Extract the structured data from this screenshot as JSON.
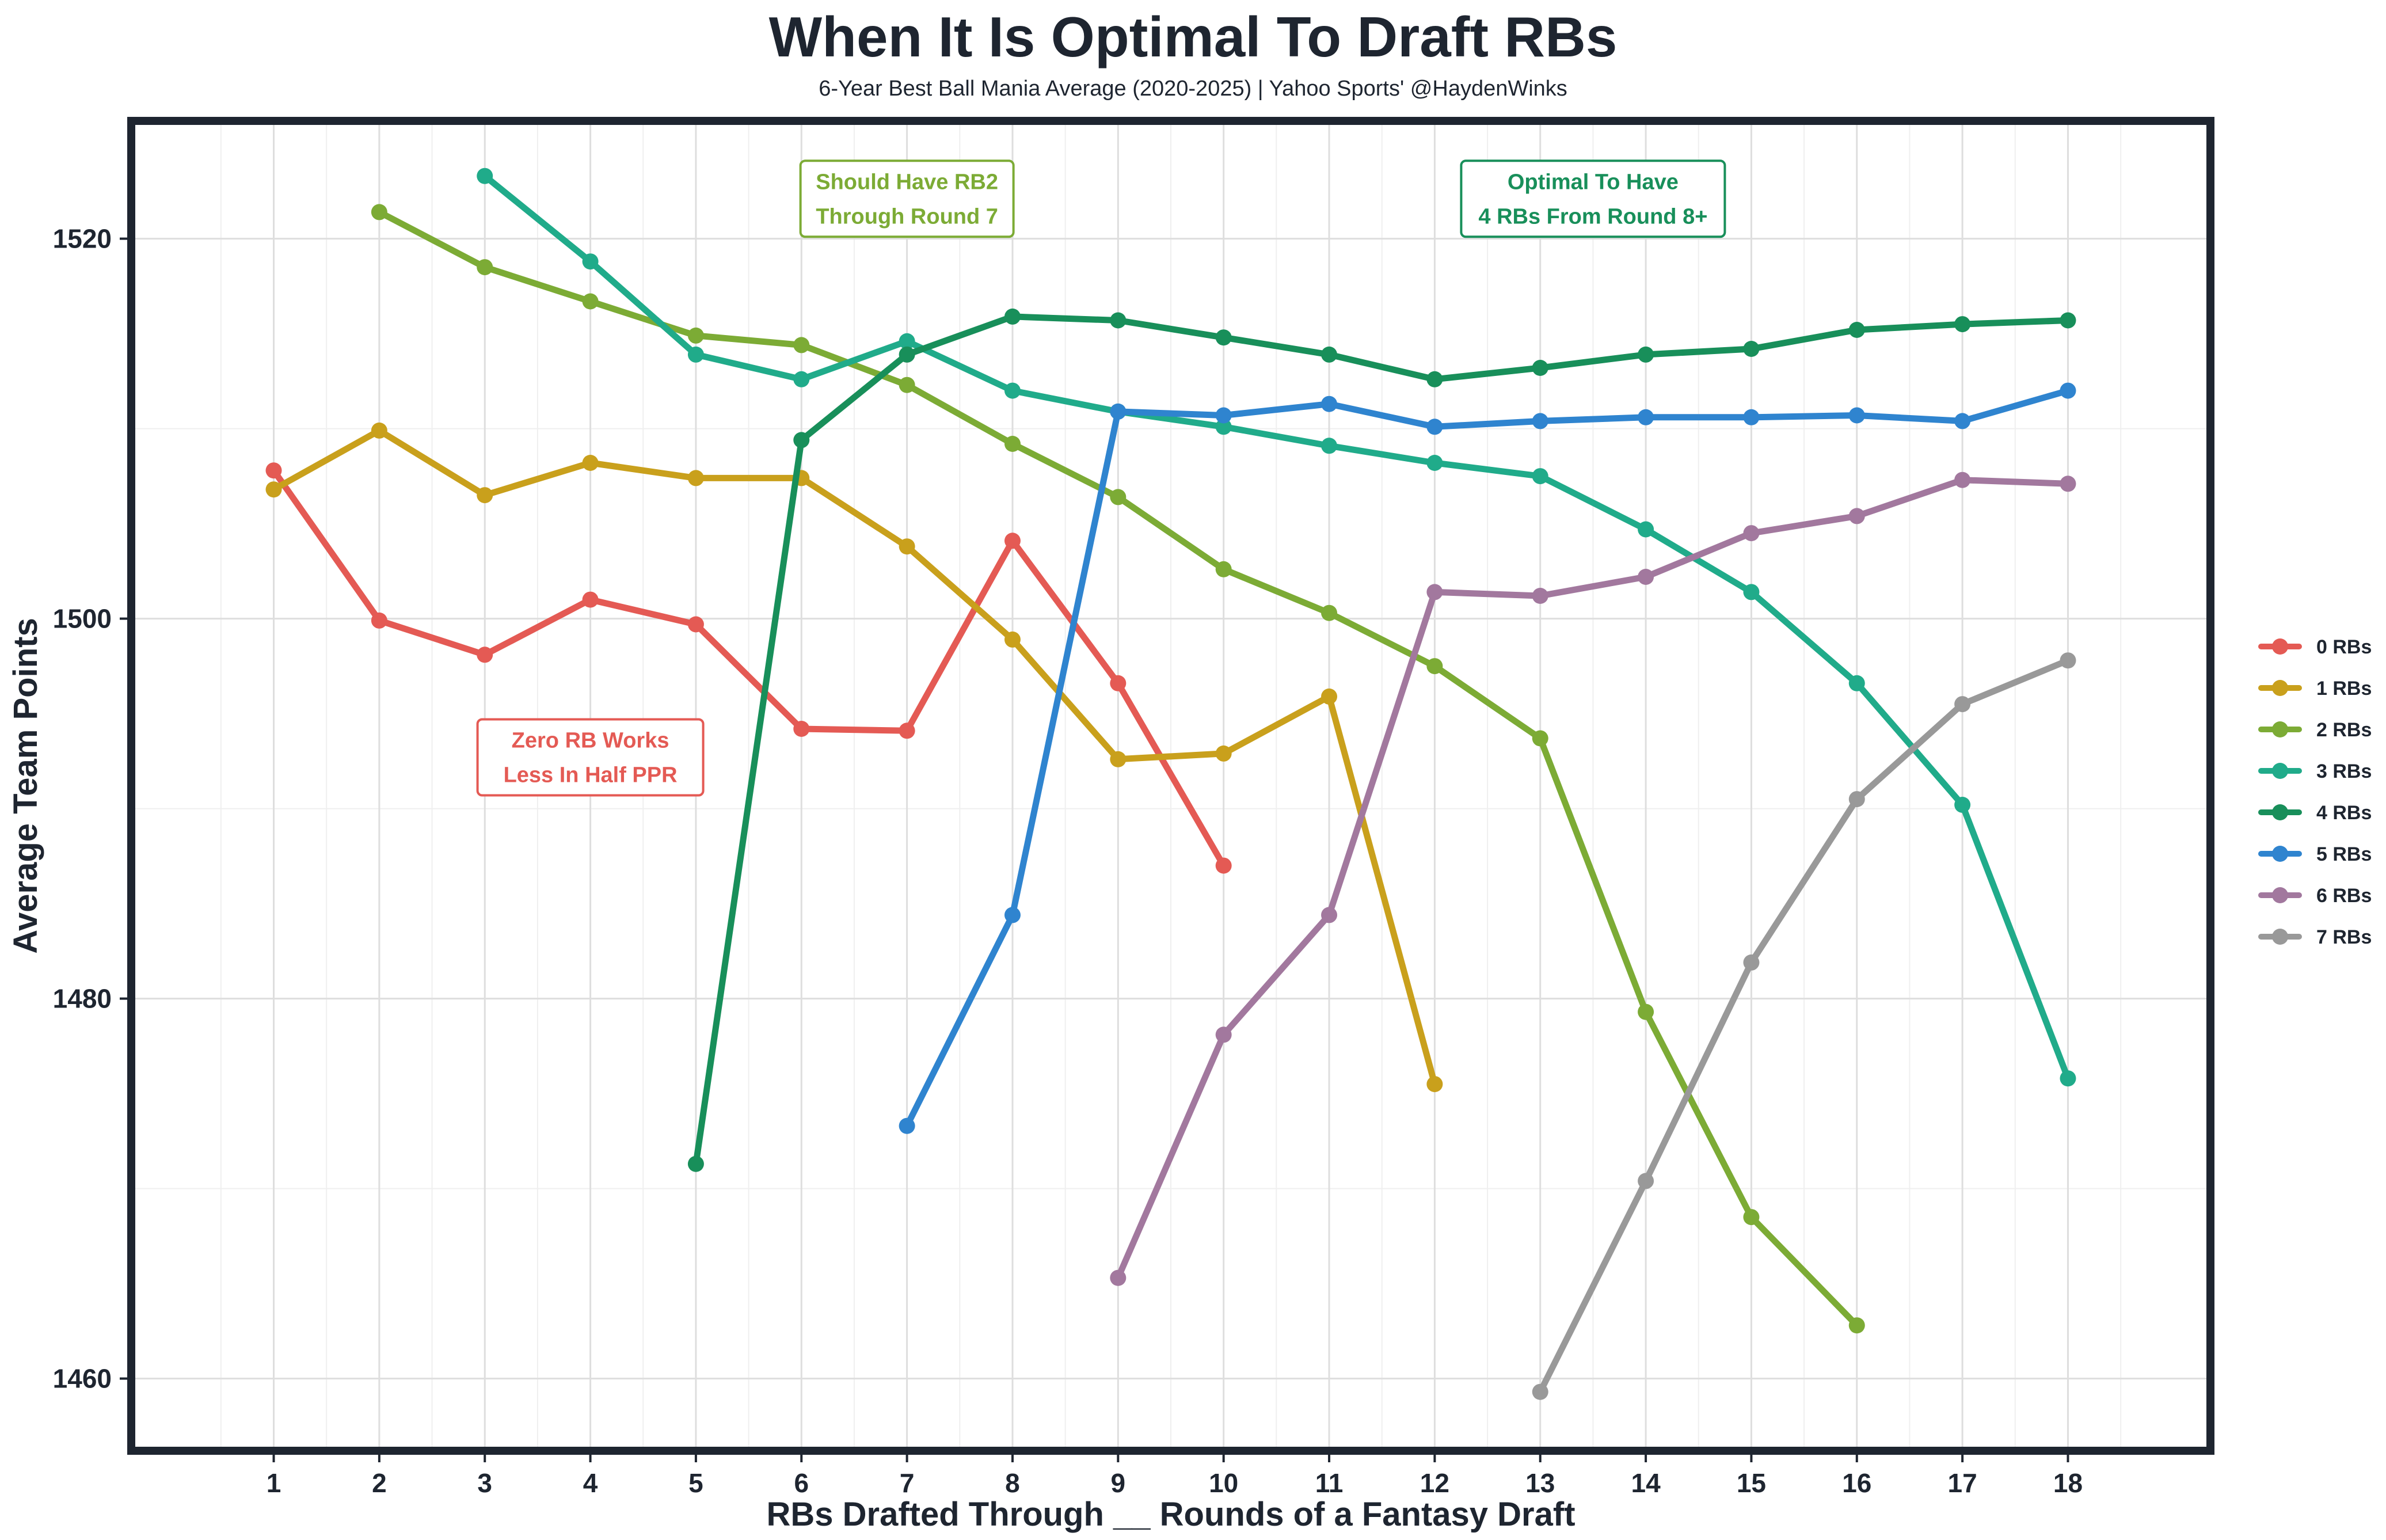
{
  "chart_data": {
    "type": "line",
    "title": "When It Is Optimal To Draft RBs",
    "subtitle": "6-Year Best Ball Mania Average (2020-2025) | Yahoo Sports' @HaydenWinks",
    "xlabel": "RBs Drafted Through __ Rounds of a Fantasy Draft",
    "ylabel": "Average Team Points",
    "xlim": [
      -0.35,
      19.35
    ],
    "ylim": [
      1456.2,
      1526.2
    ],
    "x_ticks": [
      1,
      2,
      3,
      4,
      5,
      6,
      7,
      8,
      9,
      10,
      11,
      12,
      13,
      14,
      15,
      16,
      17,
      18
    ],
    "y_ticks": [
      1460,
      1480,
      1500,
      1520
    ],
    "grid": true,
    "legend_position": "right",
    "series": [
      {
        "name": "0 RBs",
        "color": "#e45a54",
        "x": [
          1,
          2,
          3,
          4,
          5,
          6,
          7,
          8,
          9,
          10
        ],
        "values": [
          1507.8,
          1499.9,
          1498.1,
          1501.0,
          1499.7,
          1494.2,
          1494.1,
          1504.1,
          1496.6,
          1487.0
        ]
      },
      {
        "name": "1 RBs",
        "color": "#c9a01c",
        "x": [
          1,
          2,
          3,
          4,
          5,
          6,
          7,
          8,
          9,
          10,
          11,
          12
        ],
        "values": [
          1506.8,
          1509.9,
          1506.5,
          1508.2,
          1507.4,
          1507.4,
          1503.8,
          1498.9,
          1492.6,
          1492.9,
          1495.9,
          1475.5
        ]
      },
      {
        "name": "2 RBs",
        "color": "#7cab35",
        "x": [
          2,
          3,
          4,
          5,
          6,
          7,
          8,
          9,
          10,
          11,
          12,
          13,
          14,
          15,
          16
        ],
        "values": [
          1521.4,
          1518.5,
          1516.7,
          1514.9,
          1514.4,
          1512.3,
          1509.2,
          1506.4,
          1502.6,
          1500.3,
          1497.5,
          1493.7,
          1479.3,
          1468.5,
          1462.8
        ]
      },
      {
        "name": "3 RBs",
        "color": "#20ab8a",
        "x": [
          3,
          4,
          5,
          6,
          7,
          8,
          9,
          10,
          11,
          12,
          13,
          14,
          15,
          16,
          17,
          18
        ],
        "values": [
          1523.3,
          1518.8,
          1513.9,
          1512.6,
          1514.6,
          1512.0,
          1510.9,
          1510.1,
          1509.1,
          1508.2,
          1507.5,
          1504.7,
          1501.4,
          1496.6,
          1490.2,
          1475.8
        ]
      },
      {
        "name": "4 RBs",
        "color": "#188f5a",
        "x": [
          5,
          6,
          7,
          8,
          9,
          10,
          11,
          12,
          13,
          14,
          15,
          16,
          17,
          18
        ],
        "values": [
          1471.3,
          1509.4,
          1513.9,
          1515.9,
          1515.7,
          1514.8,
          1513.9,
          1512.6,
          1513.2,
          1513.9,
          1514.2,
          1515.2,
          1515.5,
          1515.7
        ]
      },
      {
        "name": "5 RBs",
        "color": "#2f84cf",
        "x": [
          7,
          8,
          9,
          10,
          11,
          12,
          13,
          14,
          15,
          16,
          17,
          18
        ],
        "values": [
          1473.3,
          1484.4,
          1510.9,
          1510.7,
          1511.3,
          1510.1,
          1510.4,
          1510.6,
          1510.6,
          1510.7,
          1510.4,
          1512.0
        ]
      },
      {
        "name": "6 RBs",
        "color": "#a2789e",
        "x": [
          9,
          10,
          11,
          12,
          13,
          14,
          15,
          16,
          17,
          18
        ],
        "values": [
          1465.3,
          1478.1,
          1484.4,
          1501.4,
          1501.2,
          1502.2,
          1504.5,
          1505.4,
          1507.3,
          1507.1
        ]
      },
      {
        "name": "7 RBs",
        "color": "#999999",
        "x": [
          13,
          14,
          15,
          16,
          17,
          18
        ],
        "values": [
          1459.3,
          1470.4,
          1481.9,
          1490.5,
          1495.5,
          1497.8
        ]
      }
    ],
    "annotations": [
      {
        "text": [
          "Should Have RB2",
          "Through Round 7"
        ],
        "color": "#7cab35",
        "x": 7.0,
        "y": 1522.1
      },
      {
        "text": [
          "Optimal To Have",
          "4 RBs From Round 8+"
        ],
        "color": "#188f5a",
        "x": 13.5,
        "y": 1522.1
      },
      {
        "text": [
          "Zero RB Works",
          "Less In Half PPR"
        ],
        "color": "#e45a54",
        "x": 4.0,
        "y": 1492.7
      }
    ]
  }
}
